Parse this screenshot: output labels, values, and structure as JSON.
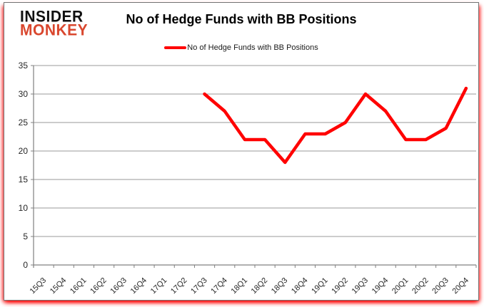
{
  "logo": {
    "line1": "INSIDER",
    "line2": "MONKEY"
  },
  "header": {
    "title": "No of Hedge Funds with BB Positions"
  },
  "legend": {
    "label": "No of Hedge Funds with BB Positions"
  },
  "colors": {
    "series": "#ff0000",
    "grid": "#9a9a9a",
    "axis": "#808080",
    "tick_label": "#262626",
    "logo_black": "#111111",
    "logo_red": "#d9472e",
    "card_border": "#737373",
    "glow": "#ff0000"
  },
  "chart_data": {
    "type": "line",
    "title": "No of Hedge Funds with BB Positions",
    "xlabel": "",
    "ylabel": "",
    "categories": [
      "15Q3",
      "15Q4",
      "16Q1",
      "16Q2",
      "16Q3",
      "16Q4",
      "17Q1",
      "17Q2",
      "17Q3",
      "17Q4",
      "18Q1",
      "18Q2",
      "18Q3",
      "18Q4",
      "19Q1",
      "19Q2",
      "19Q3",
      "19Q4",
      "20Q1",
      "20Q2",
      "20Q3",
      "20Q4"
    ],
    "series": [
      {
        "name": "No of Hedge Funds with BB Positions",
        "color": "#ff0000",
        "values": [
          null,
          null,
          null,
          null,
          null,
          null,
          null,
          null,
          30,
          27,
          22,
          22,
          18,
          23,
          23,
          25,
          30,
          27,
          22,
          22,
          24,
          31
        ]
      }
    ],
    "ylim": [
      0,
      35
    ],
    "yticks": [
      0,
      5,
      10,
      15,
      20,
      25,
      30,
      35
    ],
    "grid": true,
    "legend_position": "top"
  }
}
